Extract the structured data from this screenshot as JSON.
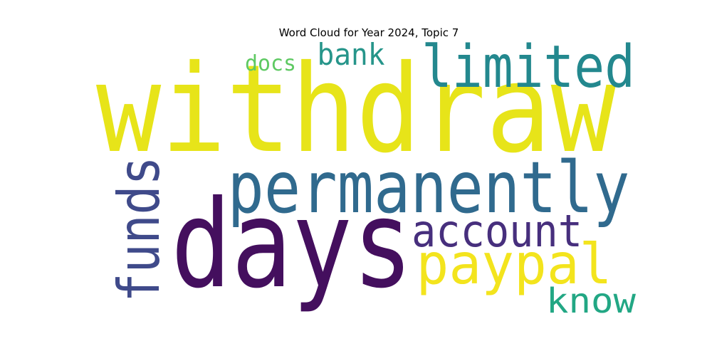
{
  "title": "Word Cloud for Year 2024, Topic 7",
  "words": [
    {
      "text": "withdraw",
      "color": "#e7e419"
    },
    {
      "text": "days",
      "color": "#440f5e"
    },
    {
      "text": "permanently",
      "color": "#306a8e"
    },
    {
      "text": "limited",
      "color": "#23888e"
    },
    {
      "text": "funds",
      "color": "#3f4a8a"
    },
    {
      "text": "account",
      "color": "#472f7d"
    },
    {
      "text": "paypal",
      "color": "#f3e41d"
    },
    {
      "text": "bank",
      "color": "#26958a"
    },
    {
      "text": "know",
      "color": "#22a784"
    },
    {
      "text": "docs",
      "color": "#5ec962"
    }
  ]
}
